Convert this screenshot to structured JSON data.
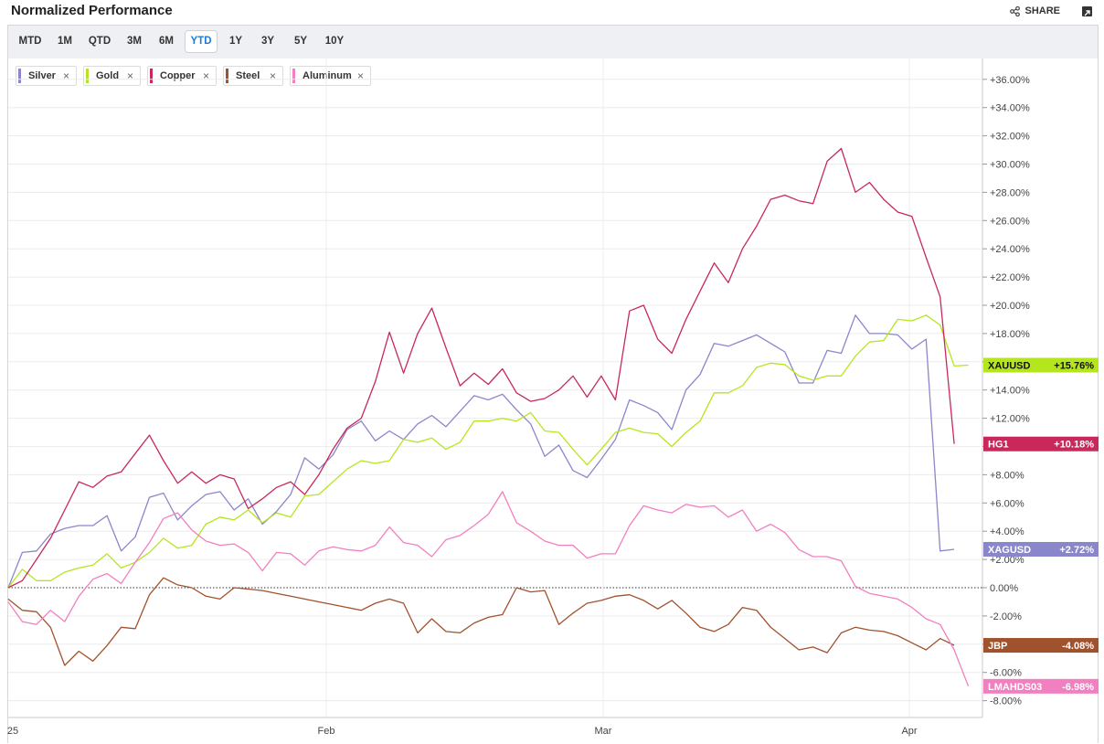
{
  "header": {
    "title": "Normalized Performance",
    "share_label": "SHARE"
  },
  "tabs": [
    "MTD",
    "1M",
    "QTD",
    "3M",
    "6M",
    "YTD",
    "1Y",
    "3Y",
    "5Y",
    "10Y"
  ],
  "active_tab": "YTD",
  "legend_items": [
    {
      "label": "Silver",
      "color": "#8a86cc"
    },
    {
      "label": "Gold",
      "color": "#b5e61d"
    },
    {
      "label": "Copper",
      "color": "#c8285a"
    },
    {
      "label": "Steel",
      "color": "#a0522d"
    },
    {
      "label": "Aluminum",
      "color": "#f27fbf"
    }
  ],
  "chart_data": {
    "type": "line",
    "x_tick_labels": [
      "25",
      "Feb",
      "Mar",
      "Apr"
    ],
    "y_ticks": [
      -8,
      -6,
      -4,
      -2,
      0,
      2,
      4,
      6,
      8,
      10,
      12,
      14,
      16,
      18,
      20,
      22,
      24,
      26,
      28,
      30,
      32,
      34,
      36
    ],
    "y_tick_labels": [
      "-8.00%",
      "-6.00%",
      "-4.00%",
      "-2.00%",
      "0.00%",
      "+2.00%",
      "+4.00%",
      "+6.00%",
      "+8.00%",
      "+10.00%",
      "+12.00%",
      "+14.00%",
      "+16.00%",
      "+18.00%",
      "+20.00%",
      "+22.00%",
      "+24.00%",
      "+26.00%",
      "+28.00%",
      "+30.00%",
      "+32.00%",
      "+34.00%",
      "+36.00%"
    ],
    "ylim": [
      -8.5,
      37
    ],
    "grid": true,
    "zero_line": "dotted",
    "series": [
      {
        "name": "Silver",
        "symbol": "XAGUSD",
        "color": "#8a86cc",
        "last_label": "+2.72%",
        "last_value": 2.72,
        "values": [
          0,
          2.5,
          2.6,
          3.8,
          4.2,
          4.4,
          4.4,
          5.1,
          2.6,
          3.6,
          6.4,
          6.7,
          4.8,
          5.8,
          6.6,
          6.8,
          5.5,
          6.3,
          4.5,
          5.4,
          6.6,
          9.2,
          8.4,
          9.4,
          11.2,
          11.8,
          10.4,
          11.1,
          10.5,
          11.6,
          12.2,
          11.4,
          12.5,
          13.6,
          13.3,
          13.7,
          12.6,
          11.6,
          9.3,
          10.1,
          8.3,
          7.8,
          9.1,
          10.5,
          13.3,
          12.9,
          12.4,
          11.2,
          14.0,
          15.1,
          17.3,
          17.1,
          17.5,
          17.9,
          17.3,
          16.7,
          14.5,
          14.5,
          16.8,
          16.6,
          19.3,
          18.0,
          18.0,
          17.9,
          16.9,
          17.6,
          2.6,
          2.72
        ]
      },
      {
        "name": "Gold",
        "symbol": "XAUUSD",
        "color": "#b5e61d",
        "last_label": "+15.76%",
        "last_value": 15.76,
        "values": [
          0,
          1.3,
          0.5,
          0.5,
          1.1,
          1.4,
          1.6,
          2.4,
          1.4,
          1.8,
          2.5,
          3.5,
          2.8,
          3.0,
          4.5,
          5.0,
          4.8,
          5.5,
          4.6,
          5.3,
          5.0,
          6.5,
          6.6,
          7.5,
          8.4,
          9.0,
          8.8,
          9.0,
          10.5,
          10.3,
          10.6,
          9.8,
          10.3,
          11.8,
          11.8,
          12.0,
          11.8,
          12.4,
          11.1,
          11.0,
          9.8,
          8.7,
          9.8,
          11.0,
          11.3,
          11.0,
          10.9,
          10.0,
          11.0,
          11.8,
          13.8,
          13.8,
          14.3,
          15.6,
          15.9,
          15.8,
          15.0,
          14.7,
          15.0,
          15.0,
          16.4,
          17.4,
          17.5,
          19.0,
          18.9,
          19.3,
          18.6,
          15.7,
          15.76
        ]
      },
      {
        "name": "Copper",
        "symbol": "HG1",
        "color": "#c8285a",
        "last_label": "+10.18%",
        "last_value": 10.18,
        "values": [
          0,
          0.5,
          2.0,
          3.5,
          5.5,
          7.5,
          7.1,
          7.9,
          8.2,
          9.5,
          10.8,
          9.0,
          7.4,
          8.2,
          7.4,
          8.0,
          7.7,
          5.6,
          6.3,
          7.1,
          7.5,
          6.6,
          8.0,
          9.8,
          11.3,
          12.0,
          14.6,
          18.1,
          15.2,
          18.0,
          19.8,
          17.0,
          14.3,
          15.2,
          14.4,
          15.5,
          13.8,
          13.2,
          13.4,
          14.0,
          15.0,
          13.5,
          15.0,
          13.3,
          19.6,
          20.0,
          17.6,
          16.6,
          19.0,
          21.0,
          23.0,
          21.6,
          24.0,
          25.6,
          27.5,
          27.8,
          27.4,
          27.2,
          30.2,
          31.1,
          28.0,
          28.7,
          27.5,
          26.6,
          26.3,
          23.4,
          20.6,
          10.18
        ]
      },
      {
        "name": "Steel",
        "symbol": "JBP",
        "color": "#a0522d",
        "last_label": "-4.08%",
        "last_value": -4.08,
        "values": [
          -0.8,
          -1.6,
          -1.7,
          -2.8,
          -5.5,
          -4.5,
          -5.2,
          -4.1,
          -2.8,
          -2.9,
          -0.5,
          0.7,
          0.2,
          0,
          -0.6,
          -0.8,
          0,
          -0.1,
          -0.2,
          -0.4,
          -0.6,
          -0.8,
          -1.0,
          -1.2,
          -1.4,
          -1.6,
          -1.1,
          -0.8,
          -1.1,
          -3.2,
          -2.2,
          -3.1,
          -3.2,
          -2.5,
          -2.1,
          -1.9,
          0,
          -0.3,
          -0.2,
          -2.6,
          -1.8,
          -1.1,
          -0.9,
          -0.6,
          -0.5,
          -0.9,
          -1.5,
          -0.9,
          -1.8,
          -2.8,
          -3.1,
          -2.6,
          -1.4,
          -1.6,
          -2.8,
          -3.6,
          -4.4,
          -4.2,
          -4.6,
          -3.2,
          -2.8,
          -3.0,
          -3.1,
          -3.4,
          -3.9,
          -4.4,
          -3.6,
          -4.08
        ]
      },
      {
        "name": "Aluminum",
        "symbol": "LMAHDS03",
        "color": "#f27fbf",
        "last_label": "-6.98%",
        "last_value": -6.98,
        "values": [
          -1.0,
          -2.4,
          -2.6,
          -1.6,
          -2.4,
          -0.6,
          0.6,
          1.0,
          0.3,
          1.8,
          3.2,
          4.9,
          5.3,
          4.1,
          3.3,
          3.0,
          3.1,
          2.5,
          1.2,
          2.5,
          2.4,
          1.6,
          2.6,
          2.9,
          2.7,
          2.6,
          3.0,
          4.3,
          3.2,
          3.0,
          2.2,
          3.4,
          3.7,
          4.4,
          5.2,
          6.8,
          4.6,
          4.0,
          3.3,
          3.0,
          3.0,
          2.1,
          2.4,
          2.4,
          4.4,
          5.8,
          5.5,
          5.3,
          5.9,
          5.7,
          5.8,
          5.0,
          5.5,
          4.0,
          4.5,
          3.9,
          2.7,
          2.2,
          2.2,
          1.9,
          0.1,
          -0.4,
          -0.6,
          -0.8,
          -1.4,
          -2.2,
          -2.6,
          -4.4,
          -6.98
        ]
      }
    ]
  }
}
